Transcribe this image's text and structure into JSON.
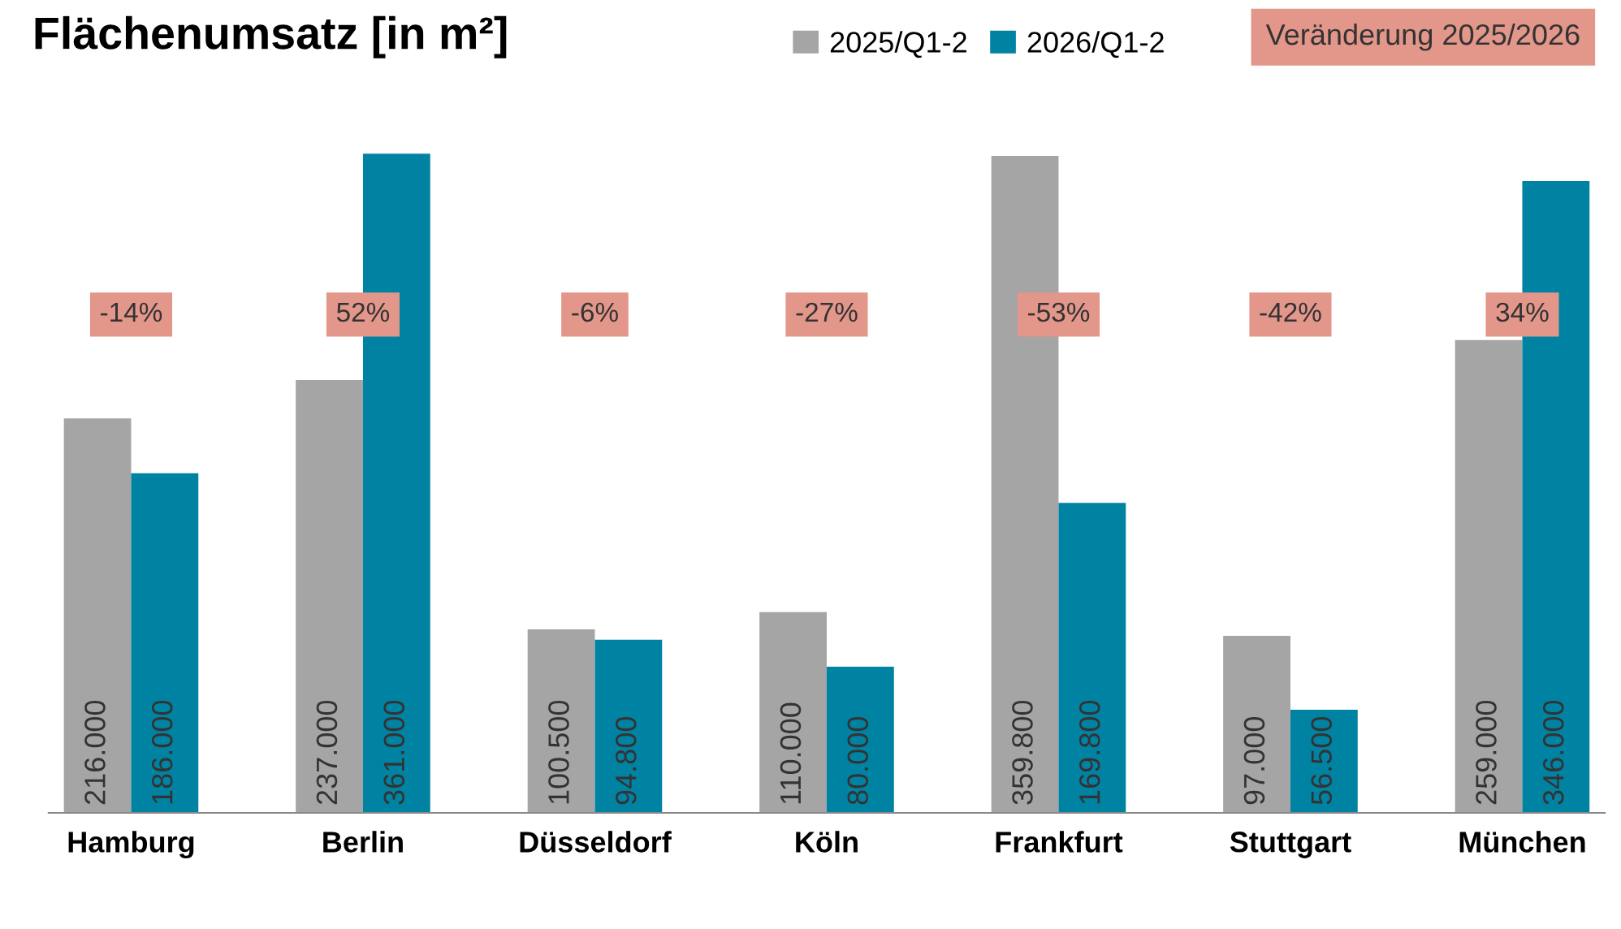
{
  "chart_data": {
    "type": "bar",
    "title": "Flächenumsatz [in m²]",
    "categories": [
      "Hamburg",
      "Berlin",
      "Düsseldorf",
      "Köln",
      "Frankfurt",
      "Stuttgart",
      "München"
    ],
    "series": [
      {
        "name": "2025/Q1-2",
        "color": "#a5a5a5",
        "values": [
          216000,
          237000,
          100500,
          110000,
          359800,
          97000,
          259000
        ],
        "value_labels": [
          "216.000",
          "237.000",
          "100.500",
          "110.000",
          "359.800",
          "97.000",
          "259.000"
        ]
      },
      {
        "name": "2026/Q1-2",
        "color": "#0083a3",
        "values": [
          186000,
          361000,
          94800,
          80000,
          169800,
          56500,
          346000
        ],
        "value_labels": [
          "186.000",
          "361.000",
          "94.800",
          "80.000",
          "169.800",
          "56.500",
          "346.000"
        ]
      }
    ],
    "annotations": [
      "Veränderung 2025/2026",
      "-14%",
      "52%",
      "-6%",
      "-27%",
      "-53%",
      "-42%",
      "34%"
    ],
    "legend": "top right",
    "grid": false
  }
}
